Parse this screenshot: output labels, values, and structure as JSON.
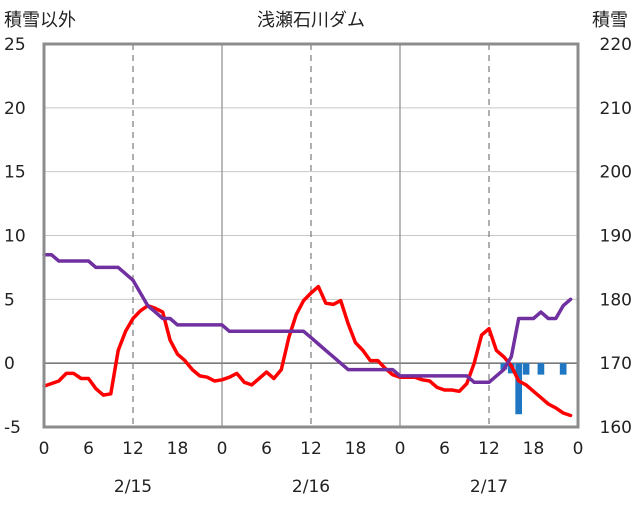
{
  "chart_data": {
    "type": "line",
    "title": "浅瀬石川ダム",
    "left_axis_label": "積雪以外",
    "right_axis_label": "積雪",
    "x": {
      "range": [
        0,
        72
      ],
      "tick_values": [
        0,
        6,
        12,
        18,
        24,
        30,
        36,
        42,
        48,
        54,
        60,
        66,
        72
      ],
      "tick_labels": [
        "0",
        "6",
        "12",
        "18",
        "0",
        "6",
        "12",
        "18",
        "0",
        "6",
        "12",
        "18",
        "0"
      ],
      "day_labels": [
        {
          "x": 12,
          "label": "2/15"
        },
        {
          "x": 36,
          "label": "2/16"
        },
        {
          "x": 60,
          "label": "2/17"
        }
      ],
      "day_boundaries": [
        24,
        48
      ],
      "dashed_gridlines": [
        12,
        36,
        60
      ]
    },
    "left_axis": {
      "range": [
        -5,
        25
      ],
      "ticks": [
        25,
        20,
        15,
        10,
        5,
        0,
        -5
      ]
    },
    "right_axis": {
      "range": [
        160,
        220
      ],
      "ticks": [
        220,
        210,
        200,
        190,
        180,
        170,
        160
      ]
    },
    "grid": true,
    "series": [
      {
        "axis": "left",
        "color": "#ff0000",
        "points": [
          [
            0,
            -1.8
          ],
          [
            1,
            -1.6
          ],
          [
            2,
            -1.4
          ],
          [
            3,
            -0.8
          ],
          [
            4,
            -0.8
          ],
          [
            5,
            -1.2
          ],
          [
            6,
            -1.2
          ],
          [
            7,
            -2.0
          ],
          [
            8,
            -2.5
          ],
          [
            9,
            -2.4
          ],
          [
            10,
            1.0
          ],
          [
            11,
            2.5
          ],
          [
            12,
            3.5
          ],
          [
            13,
            4.1
          ],
          [
            14,
            4.5
          ],
          [
            15,
            4.3
          ],
          [
            16,
            4.0
          ],
          [
            17,
            1.8
          ],
          [
            18,
            0.7
          ],
          [
            19,
            0.2
          ],
          [
            20,
            -0.5
          ],
          [
            21,
            -1.0
          ],
          [
            22,
            -1.1
          ],
          [
            23,
            -1.4
          ],
          [
            24,
            -1.3
          ],
          [
            25,
            -1.1
          ],
          [
            26,
            -0.8
          ],
          [
            27,
            -1.5
          ],
          [
            28,
            -1.7
          ],
          [
            29,
            -1.2
          ],
          [
            30,
            -0.7
          ],
          [
            31,
            -1.2
          ],
          [
            32,
            -0.5
          ],
          [
            33,
            2.0
          ],
          [
            34,
            3.8
          ],
          [
            35,
            4.9
          ],
          [
            36,
            5.5
          ],
          [
            37,
            6.0
          ],
          [
            38,
            4.7
          ],
          [
            39,
            4.6
          ],
          [
            40,
            4.9
          ],
          [
            41,
            3.1
          ],
          [
            42,
            1.6
          ],
          [
            43,
            1.0
          ],
          [
            44,
            0.2
          ],
          [
            45,
            0.2
          ],
          [
            46,
            -0.4
          ],
          [
            47,
            -0.9
          ],
          [
            48,
            -1.1
          ],
          [
            49,
            -1.1
          ],
          [
            50,
            -1.1
          ],
          [
            51,
            -1.3
          ],
          [
            52,
            -1.4
          ],
          [
            53,
            -1.9
          ],
          [
            54,
            -2.1
          ],
          [
            55,
            -2.1
          ],
          [
            56,
            -2.2
          ],
          [
            57,
            -1.6
          ],
          [
            58,
            0.0
          ],
          [
            59,
            2.2
          ],
          [
            60,
            2.7
          ],
          [
            61,
            1.0
          ],
          [
            62,
            0.5
          ],
          [
            63,
            -0.2
          ],
          [
            64,
            -1.4
          ],
          [
            65,
            -1.7
          ],
          [
            66,
            -2.2
          ],
          [
            67,
            -2.7
          ],
          [
            68,
            -3.2
          ],
          [
            69,
            -3.5
          ],
          [
            70,
            -3.9
          ],
          [
            71,
            -4.1
          ]
        ]
      },
      {
        "axis": "right",
        "color": "#7030a0",
        "points": [
          [
            0,
            187
          ],
          [
            1,
            187
          ],
          [
            2,
            186
          ],
          [
            3,
            186
          ],
          [
            4,
            186
          ],
          [
            5,
            186
          ],
          [
            6,
            186
          ],
          [
            7,
            185
          ],
          [
            8,
            185
          ],
          [
            9,
            185
          ],
          [
            10,
            185
          ],
          [
            11,
            184
          ],
          [
            12,
            183
          ],
          [
            13,
            181
          ],
          [
            14,
            179
          ],
          [
            15,
            178
          ],
          [
            16,
            177
          ],
          [
            17,
            177
          ],
          [
            18,
            176
          ],
          [
            19,
            176
          ],
          [
            20,
            176
          ],
          [
            21,
            176
          ],
          [
            22,
            176
          ],
          [
            23,
            176
          ],
          [
            24,
            176
          ],
          [
            25,
            175
          ],
          [
            26,
            175
          ],
          [
            27,
            175
          ],
          [
            28,
            175
          ],
          [
            29,
            175
          ],
          [
            30,
            175
          ],
          [
            31,
            175
          ],
          [
            32,
            175
          ],
          [
            33,
            175
          ],
          [
            34,
            175
          ],
          [
            35,
            175
          ],
          [
            36,
            174
          ],
          [
            37,
            173
          ],
          [
            38,
            172
          ],
          [
            39,
            171
          ],
          [
            40,
            170
          ],
          [
            41,
            169
          ],
          [
            42,
            169
          ],
          [
            43,
            169
          ],
          [
            44,
            169
          ],
          [
            45,
            169
          ],
          [
            46,
            169
          ],
          [
            47,
            169
          ],
          [
            48,
            168
          ],
          [
            49,
            168
          ],
          [
            50,
            168
          ],
          [
            51,
            168
          ],
          [
            52,
            168
          ],
          [
            53,
            168
          ],
          [
            54,
            168
          ],
          [
            55,
            168
          ],
          [
            56,
            168
          ],
          [
            57,
            168
          ],
          [
            58,
            167
          ],
          [
            59,
            167
          ],
          [
            60,
            167
          ],
          [
            61,
            168
          ],
          [
            62,
            169
          ],
          [
            63,
            171
          ],
          [
            64,
            177
          ],
          [
            65,
            177
          ],
          [
            66,
            177
          ],
          [
            67,
            178
          ],
          [
            68,
            177
          ],
          [
            69,
            177
          ],
          [
            70,
            179
          ],
          [
            71,
            180
          ]
        ]
      },
      {
        "axis": "left",
        "type": "bar",
        "color": "#1f77c4",
        "points": [
          [
            62,
            -0.5
          ],
          [
            63,
            -0.8
          ],
          [
            64,
            -4.0
          ],
          [
            65,
            -0.9
          ],
          [
            67,
            -0.9
          ],
          [
            70,
            -0.9
          ]
        ]
      }
    ]
  }
}
